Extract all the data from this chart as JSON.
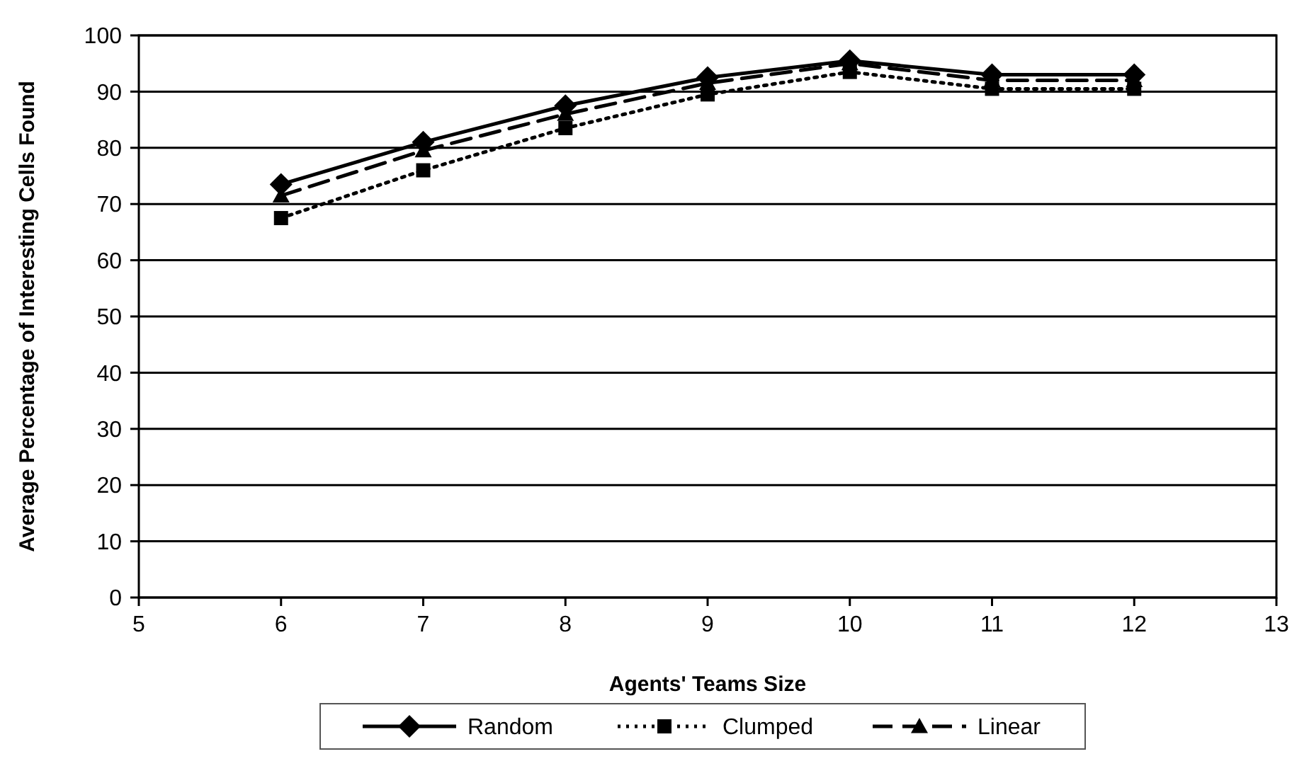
{
  "chart_data": {
    "type": "line",
    "xlabel": "Agents' Teams Size",
    "ylabel": "Average Percentage of Interesting Cells Found",
    "x": [
      6,
      7,
      8,
      9,
      10,
      11,
      12
    ],
    "series": [
      {
        "name": "Random",
        "color": "#000000",
        "marker": "diamond",
        "line_style": "solid",
        "values": [
          73.5,
          81,
          87.5,
          92.5,
          95.5,
          93,
          93
        ]
      },
      {
        "name": "Clumped",
        "color": "#000000",
        "marker": "square",
        "line_style": "dotted",
        "values": [
          67.5,
          76,
          83.5,
          89.5,
          93.5,
          90.5,
          90.5
        ]
      },
      {
        "name": "Linear",
        "color": "#000000",
        "marker": "triangle",
        "line_style": "dashed",
        "values": [
          71.5,
          79.5,
          86,
          91.5,
          95,
          92,
          92
        ]
      }
    ],
    "xlim": [
      5,
      13
    ],
    "xticks": [
      5,
      6,
      7,
      8,
      9,
      10,
      11,
      12,
      13
    ],
    "ylim": [
      0,
      100
    ],
    "yticks": [
      0,
      10,
      20,
      30,
      40,
      50,
      60,
      70,
      80,
      90,
      100
    ],
    "grid": "y",
    "legend": "bottom"
  }
}
